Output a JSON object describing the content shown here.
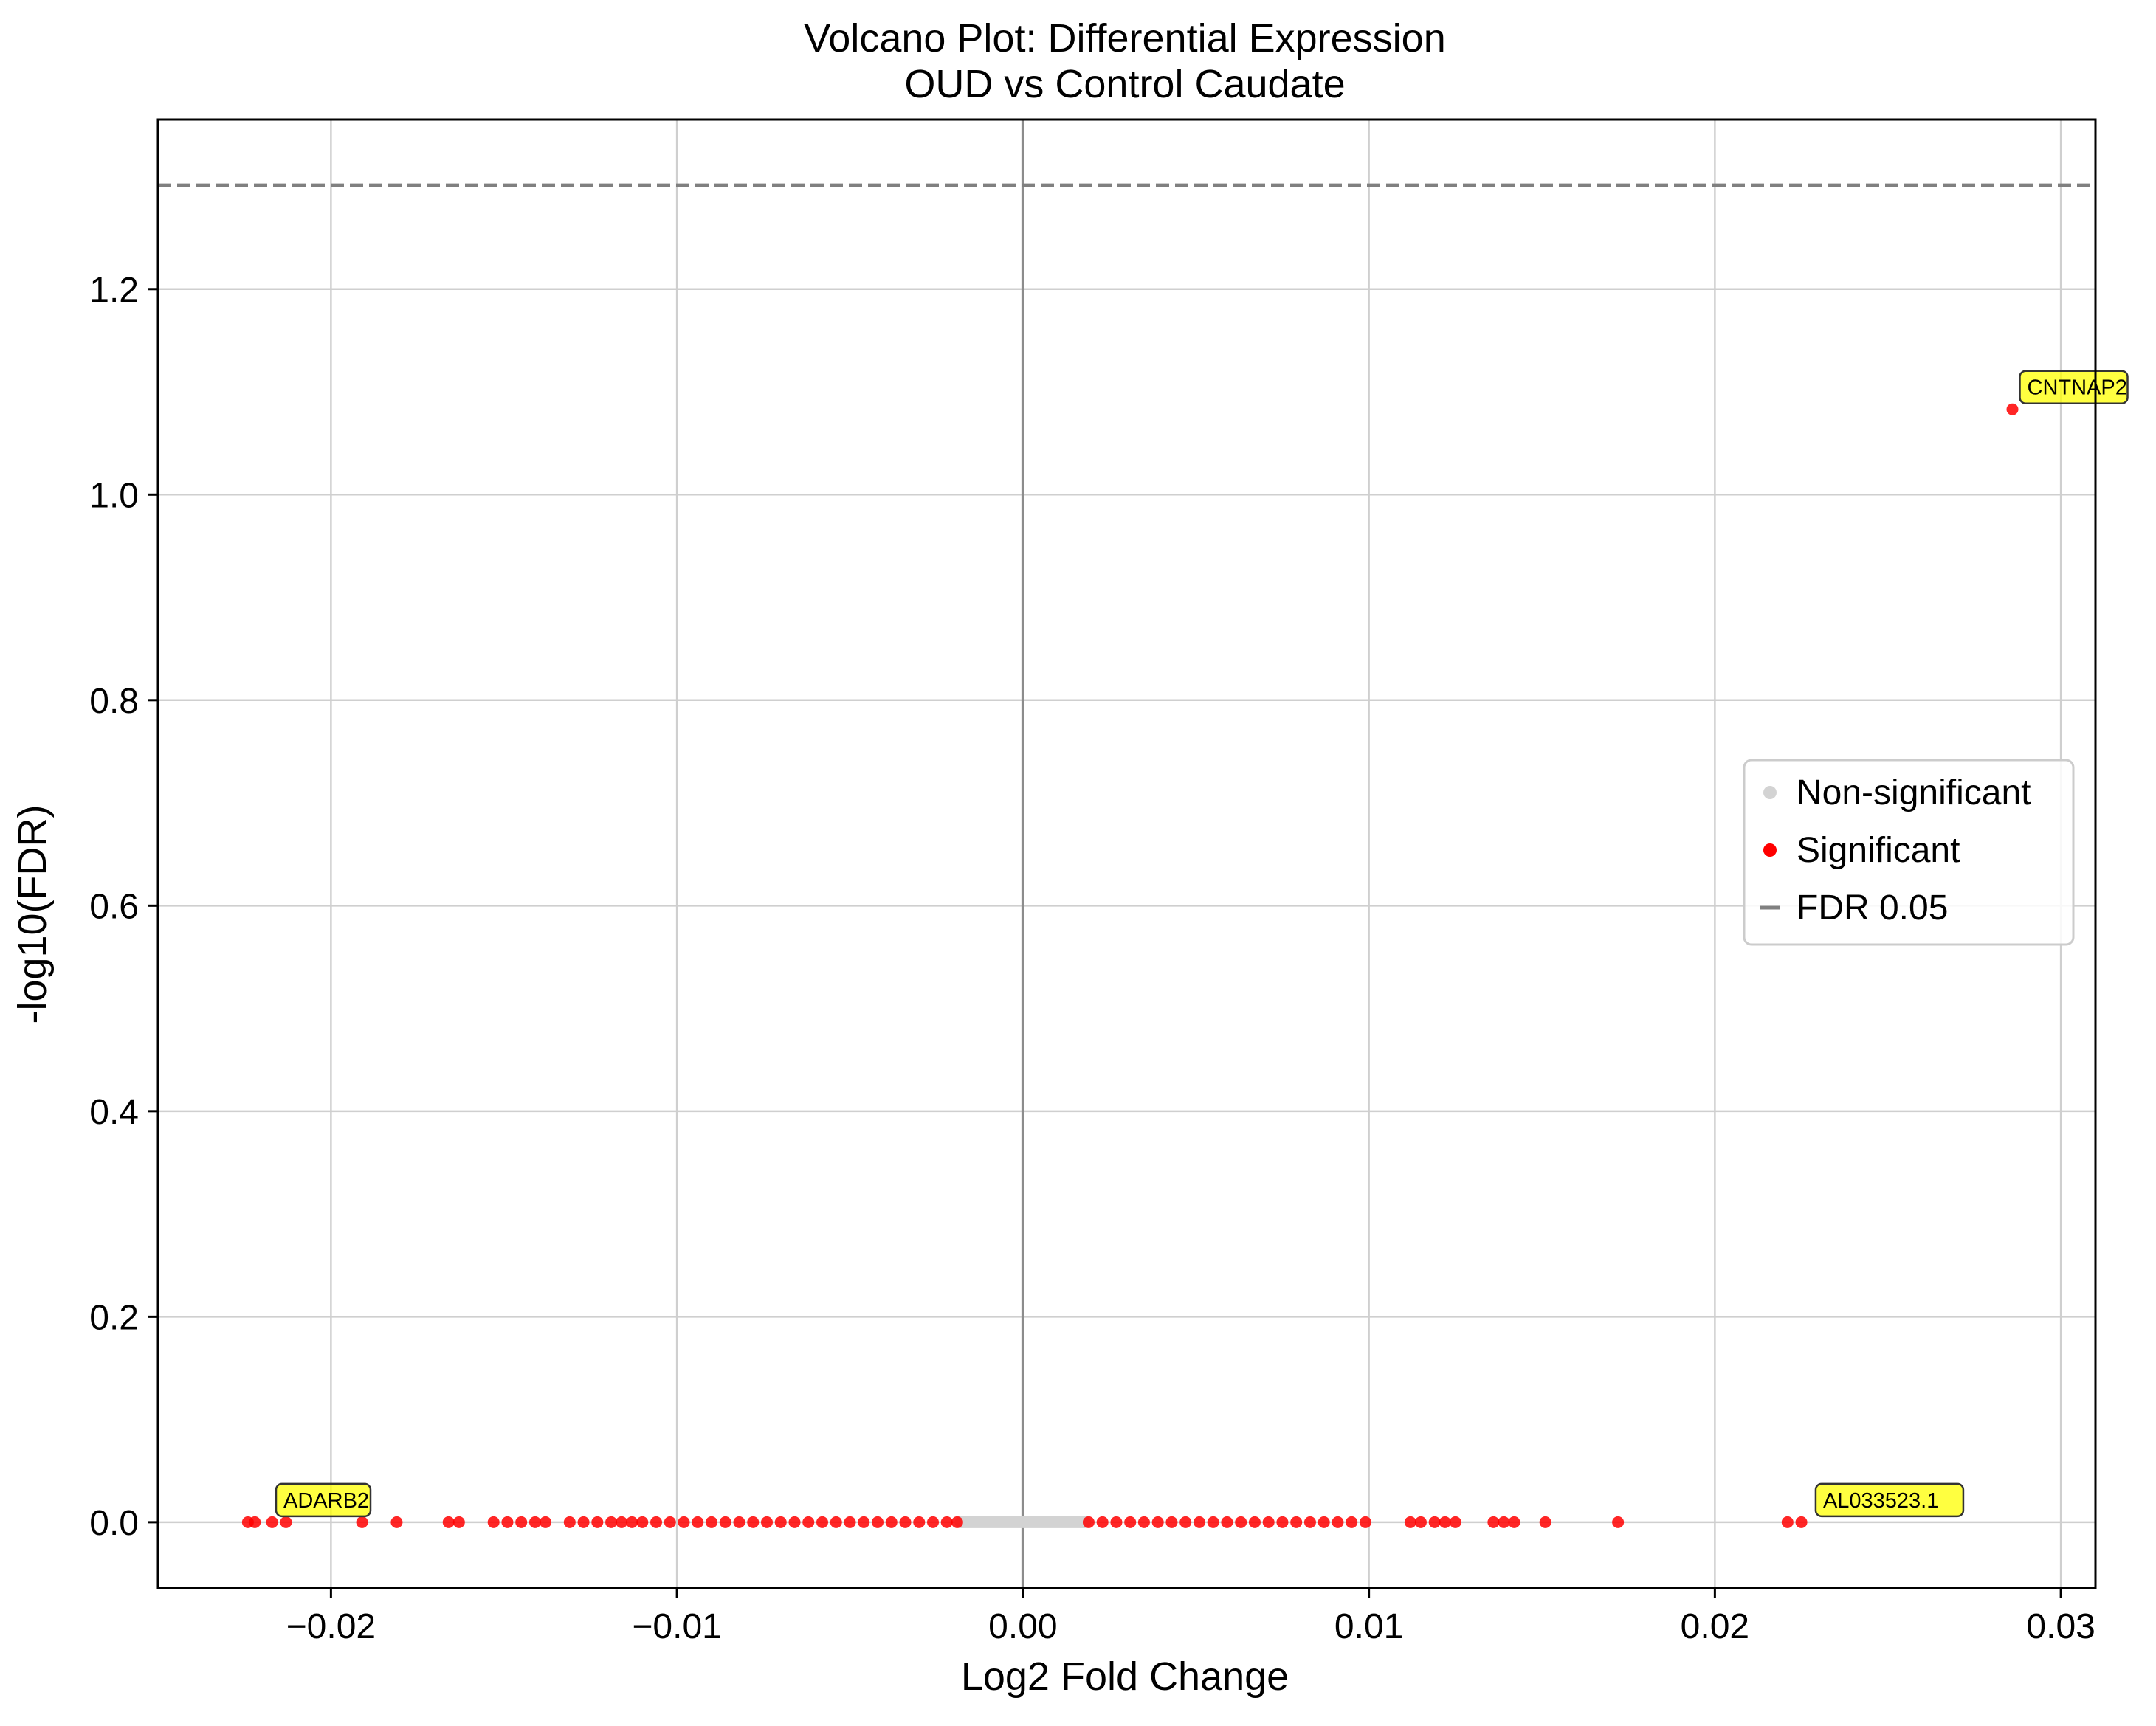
{
  "chart_data": {
    "type": "scatter",
    "title": "Volcano Plot: Differential Expression",
    "subtitle": "OUD vs Control Caudate",
    "xlabel": "Log2 Fold Change",
    "ylabel": "-log10(FDR)",
    "xlim": [
      -0.025,
      0.031
    ],
    "ylim": [
      -0.064,
      1.365
    ],
    "xticks": [
      -0.02,
      -0.01,
      0.0,
      0.01,
      0.02,
      0.03
    ],
    "xtick_labels": [
      "−0.02",
      "−0.01",
      "0.00",
      "0.01",
      "0.02",
      "0.03"
    ],
    "yticks": [
      0.0,
      0.2,
      0.4,
      0.6,
      0.8,
      1.0,
      1.2
    ],
    "ytick_labels": [
      "0.0",
      "0.2",
      "0.4",
      "0.6",
      "0.8",
      "1.0",
      "1.2"
    ],
    "grid": true,
    "legend_position": "center-right",
    "threshold_line": {
      "label": "FDR 0.05",
      "y": 1.301,
      "color": "#808080"
    },
    "vertical_line_x": 0.0,
    "series": [
      {
        "name": "Non-significant",
        "color": "#d3d3d3",
        "x_range": [
          -0.0018,
          0.0018
        ],
        "y": 0.0
      },
      {
        "name": "Significant",
        "color": "#ff0000",
        "points": [
          {
            "x": -0.0224,
            "y": 0.0
          },
          {
            "x": -0.0222,
            "y": 0.0
          },
          {
            "x": -0.0217,
            "y": 0.0
          },
          {
            "x": -0.0213,
            "y": 0.0
          },
          {
            "x": -0.0191,
            "y": 0.0
          },
          {
            "x": -0.0181,
            "y": 0.0
          },
          {
            "x": -0.0166,
            "y": 0.0
          },
          {
            "x": -0.0163,
            "y": 0.0
          },
          {
            "x": -0.0153,
            "y": 0.0
          },
          {
            "x": -0.0149,
            "y": 0.0
          },
          {
            "x": -0.0145,
            "y": 0.0
          },
          {
            "x": -0.0141,
            "y": 0.0
          },
          {
            "x": -0.0138,
            "y": 0.0
          },
          {
            "x": -0.0131,
            "y": 0.0
          },
          {
            "x": -0.0127,
            "y": 0.0
          },
          {
            "x": -0.0123,
            "y": 0.0
          },
          {
            "x": -0.0119,
            "y": 0.0
          },
          {
            "x": -0.0116,
            "y": 0.0
          },
          {
            "x": -0.0113,
            "y": 0.0
          },
          {
            "x": -0.011,
            "y": 0.0
          },
          {
            "x": -0.0106,
            "y": 0.0
          },
          {
            "x": -0.0102,
            "y": 0.0
          },
          {
            "x": -0.0098,
            "y": 0.0
          },
          {
            "x": -0.0094,
            "y": 0.0
          },
          {
            "x": -0.009,
            "y": 0.0
          },
          {
            "x": -0.0086,
            "y": 0.0
          },
          {
            "x": -0.0082,
            "y": 0.0
          },
          {
            "x": -0.0078,
            "y": 0.0
          },
          {
            "x": -0.0074,
            "y": 0.0
          },
          {
            "x": -0.007,
            "y": 0.0
          },
          {
            "x": -0.0066,
            "y": 0.0
          },
          {
            "x": -0.0062,
            "y": 0.0
          },
          {
            "x": -0.0058,
            "y": 0.0
          },
          {
            "x": -0.0054,
            "y": 0.0
          },
          {
            "x": -0.005,
            "y": 0.0
          },
          {
            "x": -0.0046,
            "y": 0.0
          },
          {
            "x": -0.0042,
            "y": 0.0
          },
          {
            "x": -0.0038,
            "y": 0.0
          },
          {
            "x": -0.0034,
            "y": 0.0
          },
          {
            "x": -0.003,
            "y": 0.0
          },
          {
            "x": -0.0026,
            "y": 0.0
          },
          {
            "x": -0.0022,
            "y": 0.0
          },
          {
            "x": -0.0019,
            "y": 0.0
          },
          {
            "x": 0.0019,
            "y": 0.0
          },
          {
            "x": 0.0023,
            "y": 0.0
          },
          {
            "x": 0.0027,
            "y": 0.0
          },
          {
            "x": 0.0031,
            "y": 0.0
          },
          {
            "x": 0.0035,
            "y": 0.0
          },
          {
            "x": 0.0039,
            "y": 0.0
          },
          {
            "x": 0.0043,
            "y": 0.0
          },
          {
            "x": 0.0047,
            "y": 0.0
          },
          {
            "x": 0.0051,
            "y": 0.0
          },
          {
            "x": 0.0055,
            "y": 0.0
          },
          {
            "x": 0.0059,
            "y": 0.0
          },
          {
            "x": 0.0063,
            "y": 0.0
          },
          {
            "x": 0.0067,
            "y": 0.0
          },
          {
            "x": 0.0071,
            "y": 0.0
          },
          {
            "x": 0.0075,
            "y": 0.0
          },
          {
            "x": 0.0079,
            "y": 0.0
          },
          {
            "x": 0.0083,
            "y": 0.0
          },
          {
            "x": 0.0087,
            "y": 0.0
          },
          {
            "x": 0.0091,
            "y": 0.0
          },
          {
            "x": 0.0095,
            "y": 0.0
          },
          {
            "x": 0.0099,
            "y": 0.0
          },
          {
            "x": 0.0112,
            "y": 0.0
          },
          {
            "x": 0.0115,
            "y": 0.0
          },
          {
            "x": 0.0119,
            "y": 0.0
          },
          {
            "x": 0.0122,
            "y": 0.0
          },
          {
            "x": 0.0125,
            "y": 0.0
          },
          {
            "x": 0.0136,
            "y": 0.0
          },
          {
            "x": 0.0139,
            "y": 0.0
          },
          {
            "x": 0.0142,
            "y": 0.0
          },
          {
            "x": 0.0151,
            "y": 0.0
          },
          {
            "x": 0.0172,
            "y": 0.0
          },
          {
            "x": 0.0221,
            "y": 0.0
          },
          {
            "x": 0.0225,
            "y": 0.0
          },
          {
            "x": 0.0286,
            "y": 1.083
          }
        ]
      }
    ],
    "annotations": [
      {
        "text": "ADARB2",
        "x": -0.0218,
        "y": 0.0
      },
      {
        "text": "AL033523.1",
        "x": 0.0227,
        "y": 0.0
      },
      {
        "text": "CNTNAP2",
        "x": 0.0286,
        "y": 1.083
      }
    ],
    "legend": [
      {
        "label": "Non-significant",
        "kind": "point",
        "color": "#d3d3d3"
      },
      {
        "label": "Significant",
        "kind": "point",
        "color": "#ff0000"
      },
      {
        "label": "FDR 0.05",
        "kind": "dash",
        "color": "#808080"
      }
    ]
  }
}
